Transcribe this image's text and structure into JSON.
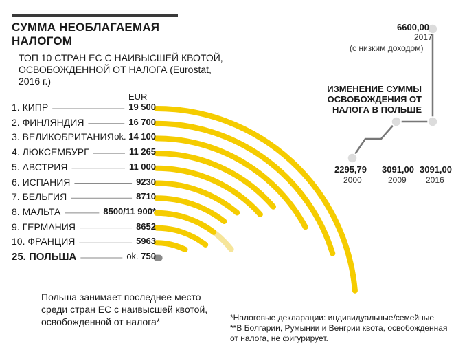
{
  "colors": {
    "accent": "#F5CC00",
    "accent_light": "#F6E59A",
    "poland": "#8A8A8A",
    "dark": "#3A3A3A"
  },
  "header": {
    "title": "СУММА НЕОБЛАГАЕМАЯ НАЛОГОМ",
    "subtitle": "ТОП 10 СТРАН ЕС С НАИВЫСШЕЙ КВОТОЙ, ОСВОБОЖДЕННОЙ ОТ НАЛОГА (Eurostat, 2016 г.)"
  },
  "chart_data": [
    {
      "type": "bar",
      "subtype": "radial",
      "title": "СУММА НЕОБЛАГАЕМАЯ НАЛОГОМ",
      "unit": "EUR",
      "rows": [
        {
          "rank": "1.",
          "country": "КИПР",
          "value_label": "19 500",
          "value": 19500
        },
        {
          "rank": "2.",
          "country": "ФИНЛЯНДИЯ",
          "value_label": "16 700",
          "value": 16700
        },
        {
          "rank": "3.",
          "country": "ВЕЛИКОБРИТАНИЯ",
          "prefix": "ok.",
          "value_label": "14 100",
          "value": 14100
        },
        {
          "rank": "4.",
          "country": "ЛЮКСЕМБУРГ",
          "value_label": "11 265",
          "value": 11265
        },
        {
          "rank": "5.",
          "country": "АВСТРИЯ",
          "value_label": "11 000",
          "value": 11000
        },
        {
          "rank": "6.",
          "country": "ИСПАНИЯ",
          "value_label": "9230",
          "value": 9230
        },
        {
          "rank": "7.",
          "country": "БЕЛЬГИЯ",
          "value_label": "8710",
          "value": 8710
        },
        {
          "rank": "8.",
          "country": "МАЛЬТА",
          "value_label": "8500/11 900*",
          "value": 8500,
          "value_alt": 11900
        },
        {
          "rank": "9.",
          "country": "ГЕРМАНИЯ",
          "value_label": "8652",
          "value": 8652
        },
        {
          "rank": "10.",
          "country": "ФРАНЦИЯ",
          "value_label": "5963",
          "value": 5963
        },
        {
          "rank": "25.",
          "country": "ПОЛЬША",
          "prefix": "ok.",
          "value_label": "750",
          "value": 750,
          "highlight": true
        }
      ]
    },
    {
      "type": "line",
      "title": "ИЗМЕНЕНИЕ СУММЫ ОСВОБОЖДЕНИЯ ОТ НАЛОГА В ПОЛЬШЕ",
      "x": [
        2000,
        2009,
        2016,
        2017
      ],
      "values": [
        2295.79,
        3091.0,
        3091.0,
        6600.0
      ],
      "labels": [
        {
          "value": "2295,79",
          "year": "2000"
        },
        {
          "value": "3091,00",
          "year": "2009"
        },
        {
          "value": "3091,00",
          "year": "2016"
        },
        {
          "value": "6600,00",
          "year": "2017",
          "note": "(с низким доходом)"
        }
      ]
    }
  ],
  "notes": {
    "left": "Польша занимает последнее место среди стран ЕС с наивысшей квотой, освобожденной от налога*",
    "right_1": "*Налоговые декларации: индивидуальные/семейные",
    "right_2": "**В Болгарии, Румынии и Венгрии квота, освобожденная от налога, не фигурирует."
  }
}
